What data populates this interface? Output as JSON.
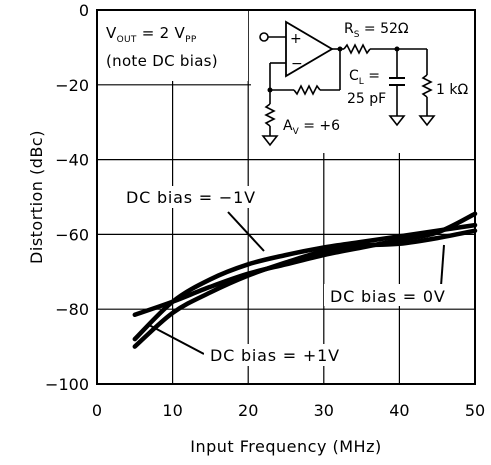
{
  "chart_data": {
    "type": "line",
    "title": "",
    "xlabel": "Input Frequency (MHz)",
    "ylabel": "Distortion (dBc)",
    "xlim": [
      0,
      50
    ],
    "ylim": [
      -100,
      0
    ],
    "x_ticks": [
      "0",
      "10",
      "20",
      "30",
      "40",
      "50"
    ],
    "y_ticks": [
      "0",
      "-20",
      "-40",
      "-60",
      "-80",
      "-100"
    ],
    "grid": true,
    "series": [
      {
        "name": "DC bias = -1V",
        "x": [
          5,
          10,
          15,
          20,
          25,
          30,
          35,
          40,
          45,
          50
        ],
        "y": [
          -88,
          -78,
          -72,
          -68,
          -65.5,
          -63.5,
          -62,
          -60.5,
          -59,
          -57.5
        ]
      },
      {
        "name": "DC bias = 0V",
        "x": [
          5,
          10,
          15,
          20,
          25,
          30,
          35,
          40,
          45,
          50
        ],
        "y": [
          -81.5,
          -78,
          -74,
          -70.5,
          -68,
          -65.5,
          -63.5,
          -61.5,
          -59.5,
          -54.5
        ]
      },
      {
        "name": "DC bias = +1V",
        "x": [
          5,
          10,
          15,
          20,
          25,
          30,
          35,
          40,
          45,
          50
        ],
        "y": [
          -90,
          -81,
          -75.5,
          -71,
          -67.5,
          -64.5,
          -63,
          -62.5,
          -61,
          -59
        ]
      }
    ],
    "annotations": {
      "minus1": "DC bias = −1V",
      "zero": "DC bias = 0V",
      "plus1": "DC bias = +1V"
    },
    "note": {
      "vout_main": "V",
      "vout_sub": "OUT",
      "vout_eq": " = 2 V",
      "vout_pp": "PP",
      "line2": "(note DC bias)"
    },
    "schematic": {
      "plus": "+",
      "minus": "−",
      "rs": "R",
      "rs_sub": "S",
      "rs_value": " = 52Ω",
      "cl": "C",
      "cl_sub": "L",
      "cl_eq": " =",
      "cl_value": "25 pF",
      "rl_value": "1 kΩ",
      "av": "A",
      "av_sub": "V",
      "av_value": " = +6"
    }
  }
}
